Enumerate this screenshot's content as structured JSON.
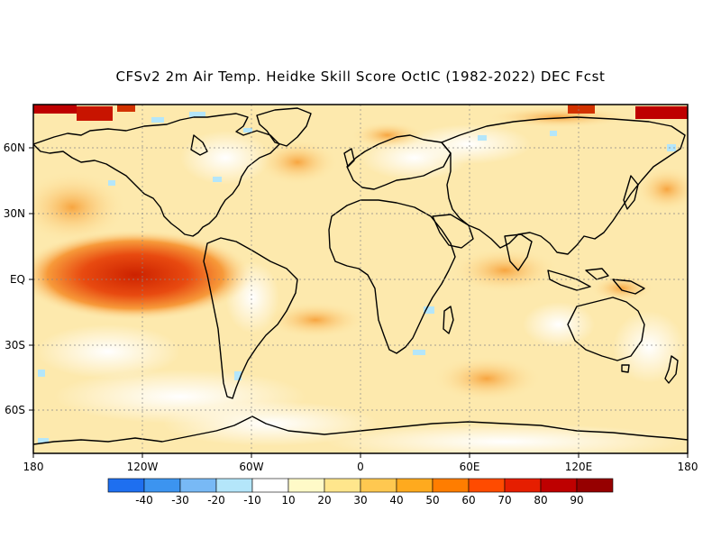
{
  "title": "CFSv2 2m Air Temp. Heidke Skill Score OctIC (1982-2022) DEC Fcst",
  "map": {
    "x_ticks": [
      "180",
      "120W",
      "60W",
      "0",
      "60E",
      "120E",
      "180"
    ],
    "y_ticks": [
      "60N",
      "30N",
      "EQ",
      "30S",
      "60S"
    ]
  },
  "colorbar": {
    "colors": [
      "#1e6ff0",
      "#3c94f0",
      "#78b9f5",
      "#b4e6fa",
      "#ffffff",
      "#fffac8",
      "#ffe68c",
      "#ffc850",
      "#ffaa1e",
      "#ff7d00",
      "#ff4b00",
      "#e61e00",
      "#be0000",
      "#960000"
    ],
    "labels": [
      "-40",
      "-30",
      "-20",
      "-10",
      "10",
      "20",
      "30",
      "40",
      "50",
      "60",
      "70",
      "80",
      "90"
    ]
  }
}
